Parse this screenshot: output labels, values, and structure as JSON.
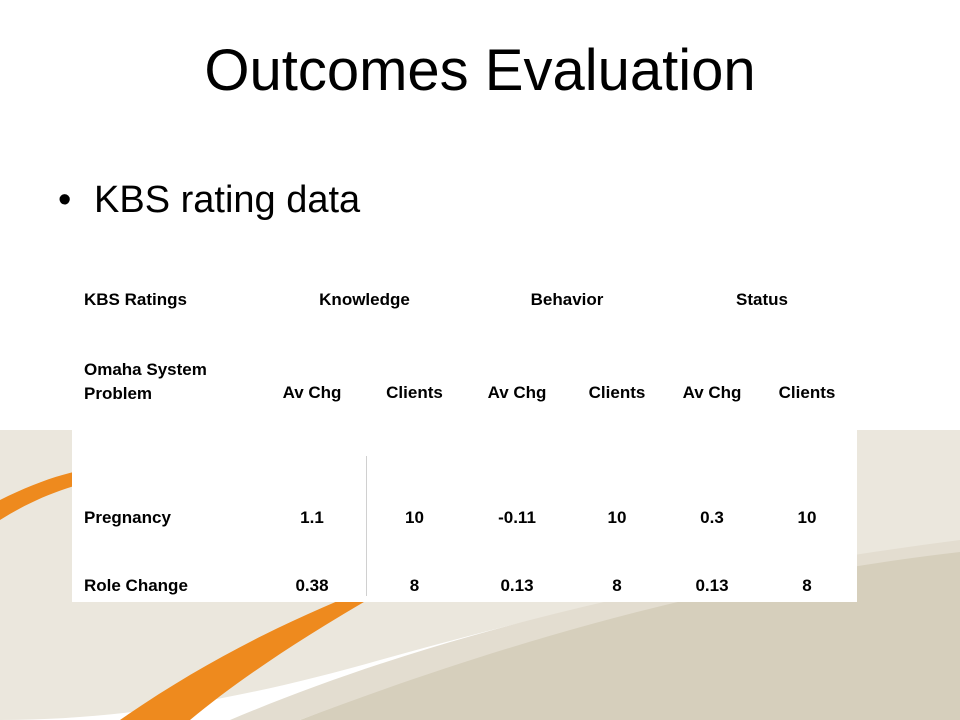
{
  "slide": {
    "title": "Outcomes Evaluation",
    "bullet": "KBS rating data"
  },
  "colors": {
    "orange": "#ee8a1e",
    "beige": "#d6cfbc",
    "light_beige": "#e9e5da"
  },
  "table": {
    "header": {
      "label": "KBS Ratings",
      "groups": [
        "Knowledge",
        "Behavior",
        "Status"
      ]
    },
    "subheader": {
      "label": "Omaha System Problem",
      "columns": [
        "Av Chg",
        "Clients",
        "Av Chg",
        "Clients",
        "Av Chg",
        "Clients"
      ]
    },
    "rows": [
      {
        "problem": "Pregnancy",
        "values": [
          "1.1",
          "10",
          "-0.11",
          "10",
          "0.3",
          "10"
        ]
      },
      {
        "problem": "Role Change",
        "values": [
          "0.38",
          "8",
          "0.13",
          "8",
          "0.13",
          "8"
        ]
      }
    ]
  }
}
